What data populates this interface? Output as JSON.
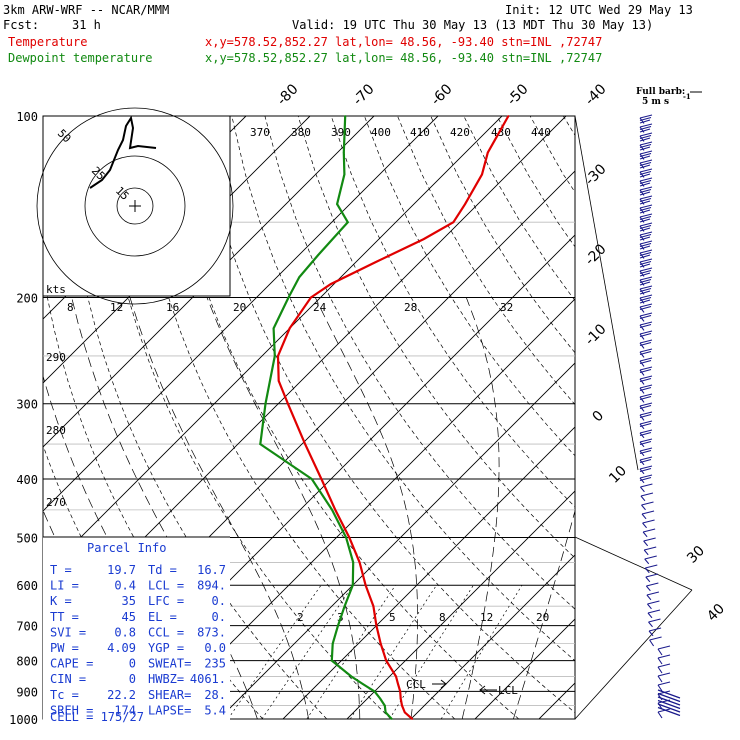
{
  "header": {
    "model": "3km ARW-WRF -- NCAR/MMM",
    "init": "Init: 12 UTC Wed 29 May 13",
    "fcst_label": "Fcst:",
    "fcst_value": "31 h",
    "valid": "Valid: 19 UTC Thu 30 May 13 (13 MDT Thu 30 May 13)",
    "temp_label": "Temperature",
    "temp_info": "x,y=578.52,852.27   lat,lon= 48.56, -93.40   stn=INL ,72747",
    "dew_label": "Dewpoint temperature",
    "dew_info": "x,y=578.52,852.27   lat,lon= 48.56, -93.40   stn=INL ,72747"
  },
  "colors": {
    "temperature": "#e00000",
    "dewpoint": "#128a12",
    "parcel_info": "#1a3bd1",
    "barbs": "#1a1a8c"
  },
  "pressure_labels": [
    "100",
    "200",
    "300",
    "400",
    "500",
    "600",
    "700",
    "800",
    "900",
    "1000"
  ],
  "isotherm_labels": [
    "-80",
    "-70",
    "-60",
    "-50",
    "-40",
    "-30",
    "-20",
    "-10",
    "0",
    "10",
    "30",
    "40"
  ],
  "theta_labels": [
    "370",
    "380",
    "390",
    "400",
    "410",
    "420",
    "430",
    "440",
    "290",
    "280",
    "270"
  ],
  "mixing_labels": [
    "2",
    "3",
    "5",
    "8",
    "12",
    "20"
  ],
  "hodograph": {
    "kts_label": "kts",
    "speed_labels": [
      "8",
      "12",
      "16",
      "20",
      "24",
      "28",
      "32"
    ],
    "ring_labels": [
      "50",
      "25",
      "15"
    ]
  },
  "barb_legend": {
    "title": "Full barb:",
    "value": "5 m s",
    "exp": "-1"
  },
  "ccl_label": "CCL",
  "lcl_label": "LCL",
  "parcel": {
    "title": "Parcel Info",
    "rows": [
      [
        "T  =",
        "19.7",
        "Td =",
        "16.7"
      ],
      [
        "LI =",
        "0.4",
        "LCL =",
        "894."
      ],
      [
        "K  =",
        "35",
        "LFC =",
        "0."
      ],
      [
        "TT =",
        "45",
        "EL  =",
        "0."
      ],
      [
        "SVI =",
        "0.8",
        "CCL =",
        "873."
      ],
      [
        "PW =",
        "4.09",
        "YGP =",
        "0.0"
      ],
      [
        "CAPE =",
        "0",
        "SWEAT=",
        "235"
      ],
      [
        "CIN =",
        "0",
        "HWBZ=",
        "4061."
      ],
      [
        "Tc =",
        "22.2",
        "SHEAR=",
        "28."
      ],
      [
        "SREH =",
        "174",
        "LAPSE=",
        "5.4"
      ]
    ],
    "cell": "CELL = 175/27"
  },
  "chart_data": {
    "type": "line",
    "x_label": "Temperature (C)",
    "y_label": "Pressure (hPa)",
    "y_scale": "log",
    "ylim": [
      1000,
      100
    ],
    "grid": true,
    "series": [
      {
        "name": "Temperature",
        "pressure": [
          1000,
          975,
          950,
          925,
          900,
          875,
          850,
          800,
          750,
          700,
          650,
          600,
          550,
          500,
          450,
          400,
          350,
          300,
          275,
          250,
          225,
          200,
          190,
          175,
          160,
          150,
          140,
          125,
          115,
          100
        ],
        "values": [
          20.2,
          18.0,
          16.5,
          15.2,
          14.0,
          12.5,
          11.0,
          7.0,
          3.5,
          0.0,
          -3.5,
          -8.0,
          -12.5,
          -18.0,
          -24.5,
          -31.5,
          -39.5,
          -48.5,
          -53.5,
          -57.5,
          -60.0,
          -61.5,
          -60.5,
          -57.0,
          -53.0,
          -51.0,
          -52.0,
          -54.0,
          -56.5,
          -59.0
        ]
      },
      {
        "name": "Dewpoint temperature",
        "pressure": [
          1000,
          975,
          950,
          925,
          900,
          875,
          850,
          800,
          750,
          700,
          650,
          600,
          550,
          500,
          450,
          400,
          350,
          300,
          250,
          225,
          200,
          185,
          170,
          150,
          140,
          125,
          115,
          100
        ],
        "values": [
          17.0,
          15.0,
          13.8,
          12.0,
          10.0,
          7.0,
          4.0,
          -1.5,
          -4.0,
          -6.0,
          -8.0,
          -10.0,
          -13.5,
          -18.5,
          -25.0,
          -33.0,
          -46.5,
          -52.0,
          -58.0,
          -62.5,
          -65.0,
          -66.5,
          -67.0,
          -67.5,
          -72.0,
          -75.5,
          -79.0,
          -84.5
        ]
      }
    ]
  }
}
